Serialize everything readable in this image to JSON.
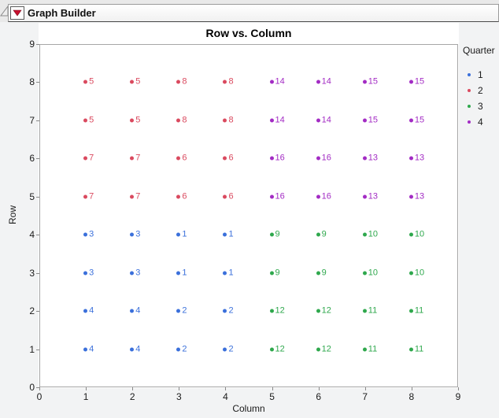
{
  "window": {
    "outline_title": "Graph Builder"
  },
  "chart_data": {
    "type": "scatter",
    "title": "Row vs. Column",
    "xlabel": "Column",
    "ylabel": "Row",
    "xlim": [
      0,
      9
    ],
    "ylim": [
      0,
      9
    ],
    "xticks": [
      0,
      1,
      2,
      3,
      4,
      5,
      6,
      7,
      8,
      9
    ],
    "yticks": [
      0,
      1,
      2,
      3,
      4,
      5,
      6,
      7,
      8,
      9
    ],
    "grid": false,
    "point_labels_shown": true,
    "legend": {
      "title": "Quarter",
      "position": "right"
    },
    "series": [
      {
        "name": "1",
        "color": "#3B70DB",
        "points": [
          {
            "x": 1,
            "y": 1,
            "v": "4"
          },
          {
            "x": 2,
            "y": 1,
            "v": "4"
          },
          {
            "x": 3,
            "y": 1,
            "v": "2"
          },
          {
            "x": 4,
            "y": 1,
            "v": "2"
          },
          {
            "x": 1,
            "y": 2,
            "v": "4"
          },
          {
            "x": 2,
            "y": 2,
            "v": "4"
          },
          {
            "x": 3,
            "y": 2,
            "v": "2"
          },
          {
            "x": 4,
            "y": 2,
            "v": "2"
          },
          {
            "x": 1,
            "y": 3,
            "v": "3"
          },
          {
            "x": 2,
            "y": 3,
            "v": "3"
          },
          {
            "x": 3,
            "y": 3,
            "v": "1"
          },
          {
            "x": 4,
            "y": 3,
            "v": "1"
          },
          {
            "x": 1,
            "y": 4,
            "v": "3"
          },
          {
            "x": 2,
            "y": 4,
            "v": "3"
          },
          {
            "x": 3,
            "y": 4,
            "v": "1"
          },
          {
            "x": 4,
            "y": 4,
            "v": "1"
          }
        ]
      },
      {
        "name": "2",
        "color": "#DA4A5F",
        "points": [
          {
            "x": 1,
            "y": 5,
            "v": "7"
          },
          {
            "x": 2,
            "y": 5,
            "v": "7"
          },
          {
            "x": 3,
            "y": 5,
            "v": "6"
          },
          {
            "x": 4,
            "y": 5,
            "v": "6"
          },
          {
            "x": 1,
            "y": 6,
            "v": "7"
          },
          {
            "x": 2,
            "y": 6,
            "v": "7"
          },
          {
            "x": 3,
            "y": 6,
            "v": "6"
          },
          {
            "x": 4,
            "y": 6,
            "v": "6"
          },
          {
            "x": 1,
            "y": 7,
            "v": "5"
          },
          {
            "x": 2,
            "y": 7,
            "v": "5"
          },
          {
            "x": 3,
            "y": 7,
            "v": "8"
          },
          {
            "x": 4,
            "y": 7,
            "v": "8"
          },
          {
            "x": 1,
            "y": 8,
            "v": "5"
          },
          {
            "x": 2,
            "y": 8,
            "v": "5"
          },
          {
            "x": 3,
            "y": 8,
            "v": "8"
          },
          {
            "x": 4,
            "y": 8,
            "v": "8"
          }
        ]
      },
      {
        "name": "3",
        "color": "#2FA84D",
        "points": [
          {
            "x": 5,
            "y": 1,
            "v": "12"
          },
          {
            "x": 6,
            "y": 1,
            "v": "12"
          },
          {
            "x": 7,
            "y": 1,
            "v": "11"
          },
          {
            "x": 8,
            "y": 1,
            "v": "11"
          },
          {
            "x": 5,
            "y": 2,
            "v": "12"
          },
          {
            "x": 6,
            "y": 2,
            "v": "12"
          },
          {
            "x": 7,
            "y": 2,
            "v": "11"
          },
          {
            "x": 8,
            "y": 2,
            "v": "11"
          },
          {
            "x": 5,
            "y": 3,
            "v": "9"
          },
          {
            "x": 6,
            "y": 3,
            "v": "9"
          },
          {
            "x": 7,
            "y": 3,
            "v": "10"
          },
          {
            "x": 8,
            "y": 3,
            "v": "10"
          },
          {
            "x": 5,
            "y": 4,
            "v": "9"
          },
          {
            "x": 6,
            "y": 4,
            "v": "9"
          },
          {
            "x": 7,
            "y": 4,
            "v": "10"
          },
          {
            "x": 8,
            "y": 4,
            "v": "10"
          }
        ]
      },
      {
        "name": "4",
        "color": "#A32CC4",
        "points": [
          {
            "x": 5,
            "y": 5,
            "v": "16"
          },
          {
            "x": 6,
            "y": 5,
            "v": "16"
          },
          {
            "x": 7,
            "y": 5,
            "v": "13"
          },
          {
            "x": 8,
            "y": 5,
            "v": "13"
          },
          {
            "x": 5,
            "y": 6,
            "v": "16"
          },
          {
            "x": 6,
            "y": 6,
            "v": "16"
          },
          {
            "x": 7,
            "y": 6,
            "v": "13"
          },
          {
            "x": 8,
            "y": 6,
            "v": "13"
          },
          {
            "x": 5,
            "y": 7,
            "v": "14"
          },
          {
            "x": 6,
            "y": 7,
            "v": "14"
          },
          {
            "x": 7,
            "y": 7,
            "v": "15"
          },
          {
            "x": 8,
            "y": 7,
            "v": "15"
          },
          {
            "x": 5,
            "y": 8,
            "v": "14"
          },
          {
            "x": 6,
            "y": 8,
            "v": "14"
          },
          {
            "x": 7,
            "y": 8,
            "v": "15"
          },
          {
            "x": 8,
            "y": 8,
            "v": "15"
          }
        ]
      }
    ],
    "colors": {
      "frame_border": "#A6A6A6",
      "red_triangle": "#C8102E"
    }
  }
}
